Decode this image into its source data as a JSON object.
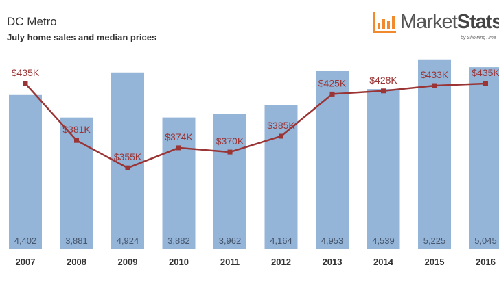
{
  "chart_data": {
    "type": "bar",
    "title": "DC Metro",
    "subtitle": "July home sales and median prices",
    "categories": [
      "2007",
      "2008",
      "2009",
      "2010",
      "2011",
      "2012",
      "2013",
      "2014",
      "2015",
      "2016"
    ],
    "series": [
      {
        "type": "bar",
        "values": [
          4402,
          3881,
          4924,
          3882,
          3962,
          4164,
          4953,
          4539,
          5225,
          5045
        ],
        "labels": [
          "4,402",
          "3,881",
          "4,924",
          "3,882",
          "3,962",
          "4,164",
          "4,953",
          "4,539",
          "5,225",
          "5,045"
        ],
        "color": "#94b4d8"
      },
      {
        "type": "line",
        "values": [
          435,
          381,
          355,
          374,
          370,
          385,
          425,
          428,
          433,
          435
        ],
        "labels": [
          "$435K",
          "$381K",
          "$355K",
          "$374K",
          "$370K",
          "$385K",
          "$425K",
          "$428K",
          "$433K",
          "$435K"
        ],
        "color": "#9b3434"
      }
    ],
    "grid": false,
    "legend": "none"
  },
  "logo": {
    "name": "MarketStats",
    "name_part1": "Market",
    "name_part2": "Stats",
    "tagline": "by ShowingTime",
    "accent": "#f08a2c"
  }
}
